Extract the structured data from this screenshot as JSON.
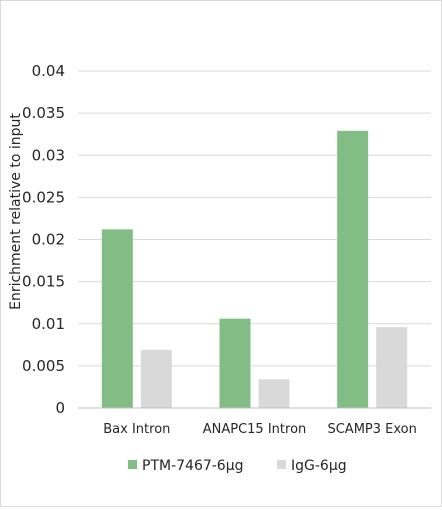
{
  "chart_data": {
    "type": "bar",
    "title": "",
    "xlabel": "",
    "ylabel": "Enrichment relative to input",
    "categories": [
      "Bax Intron",
      "ANAPC15 Intron",
      "SCAMP3 Exon"
    ],
    "series": [
      {
        "name": "PTM-7467-6µg",
        "values": [
          0.0212,
          0.0106,
          0.0329
        ],
        "color": "#82bd86"
      },
      {
        "name": "IgG-6µg",
        "values": [
          0.0069,
          0.0034,
          0.0096
        ],
        "color": "#d9d9d9"
      }
    ],
    "ylim": [
      0,
      0.04
    ],
    "yticks": [
      "0",
      "0.005",
      "0.01",
      "0.015",
      "0.02",
      "0.025",
      "0.03",
      "0.035",
      "0.04"
    ],
    "grid": true,
    "legend_position": "bottom"
  }
}
